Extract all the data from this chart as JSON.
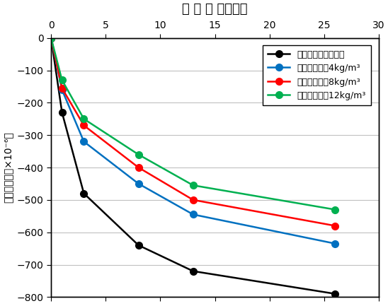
{
  "top_title": "乾 燥 期 間（週）",
  "ylabel": "乾燥収縮率（×10⁻⁶）",
  "xlim": [
    0,
    30
  ],
  "ylim": [
    -800,
    0
  ],
  "xticks": [
    0,
    5,
    10,
    15,
    20,
    25,
    30
  ],
  "yticks": [
    0,
    -100,
    -200,
    -300,
    -400,
    -500,
    -600,
    -700,
    -800
  ],
  "series": [
    {
      "label": "収縮低減剤：無添加",
      "color": "#000000",
      "x": [
        0,
        1,
        3,
        8,
        13,
        26
      ],
      "y": [
        0,
        -230,
        -480,
        -640,
        -720,
        -790
      ]
    },
    {
      "label": "収縮低減剤：4kg/m³",
      "color": "#0070C0",
      "x": [
        0,
        1,
        3,
        8,
        13,
        26
      ],
      "y": [
        0,
        -160,
        -320,
        -450,
        -545,
        -635
      ]
    },
    {
      "label": "収縮低減剤：8kg/m³",
      "color": "#FF0000",
      "x": [
        0,
        1,
        3,
        8,
        13,
        26
      ],
      "y": [
        0,
        -155,
        -270,
        -400,
        -500,
        -580
      ]
    },
    {
      "label": "収縮低減剤：12kg/m³",
      "color": "#00B050",
      "x": [
        0,
        1,
        3,
        8,
        13,
        26
      ],
      "y": [
        0,
        -130,
        -250,
        -360,
        -455,
        -530
      ]
    }
  ],
  "legend_fontsize": 9,
  "tick_fontsize": 10,
  "title_fontsize": 13,
  "ylabel_fontsize": 10,
  "marker_size": 7,
  "linewidth": 1.8
}
